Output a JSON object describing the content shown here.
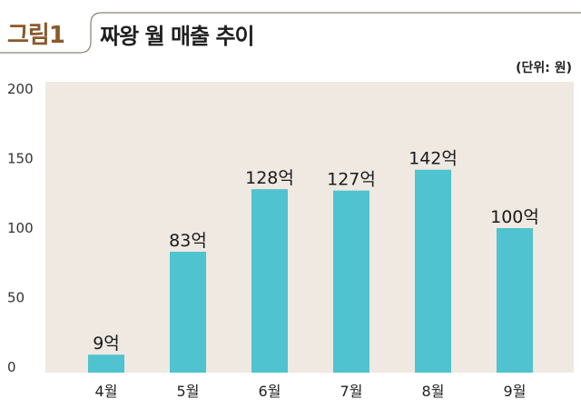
{
  "figure": {
    "label": "그림1",
    "title": "짜왕 월 매출 추이",
    "unit_label": "(단위: 원)"
  },
  "colors": {
    "bar": "#4fc3cf",
    "plot_bg": "#efe9e2",
    "label_brown": "#8a5a2b"
  },
  "chart_data": {
    "type": "bar",
    "title": "짜왕 월 매출 추이",
    "xlabel": "",
    "ylabel": "",
    "categories": [
      "4월",
      "5월",
      "6월",
      "7월",
      "8월",
      "9월"
    ],
    "values": [
      9,
      83,
      128,
      127,
      142,
      100
    ],
    "data_labels": [
      "9억",
      "83억",
      "128억",
      "127억",
      "142억",
      "100억"
    ],
    "yticks": [
      0,
      50,
      100,
      150,
      200
    ],
    "ylim": [
      0,
      200
    ],
    "grid": false,
    "legend": "none"
  }
}
